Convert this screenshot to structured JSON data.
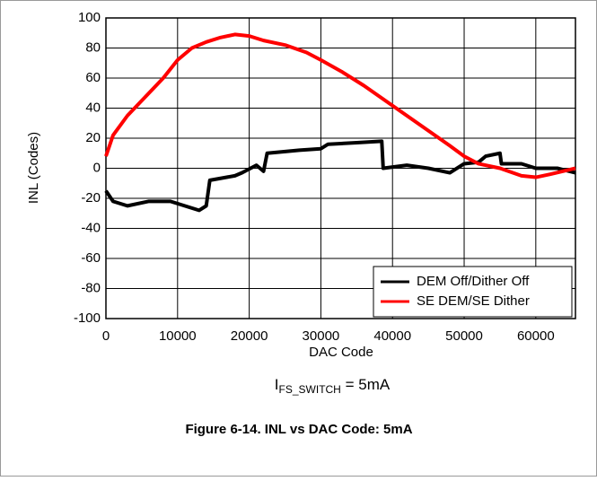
{
  "chart_data": {
    "type": "line",
    "x_label": "DAC Code",
    "y_label": "INL (Codes)",
    "xlim": [
      0,
      65535
    ],
    "xticks": [
      0,
      10000,
      20000,
      30000,
      40000,
      50000,
      60000
    ],
    "ylim": [
      -100,
      100
    ],
    "yticks": [
      -100,
      -80,
      -60,
      -40,
      -20,
      0,
      20,
      40,
      60,
      80,
      100
    ],
    "grid": true,
    "legend": "lower right",
    "condition": {
      "base": "I",
      "sub": "FS_SWITCH",
      "rest": " = 5mA"
    },
    "caption": "Figure 6-14. INL vs DAC Code: 5mA",
    "series": [
      {
        "name": "DEM Off/Dither Off",
        "color": "#000000",
        "x": [
          0,
          1000,
          3000,
          6000,
          9000,
          11000,
          13000,
          14000,
          14500,
          18000,
          19000,
          21000,
          22000,
          22500,
          27000,
          30000,
          31000,
          35000,
          38500,
          38700,
          42000,
          45000,
          48000,
          50000,
          52000,
          53000,
          55000,
          55200,
          58000,
          60000,
          63000,
          65535
        ],
        "values": [
          -15,
          -22,
          -25,
          -22,
          -22,
          -25,
          -28,
          -25,
          -8,
          -5,
          -3,
          2,
          -2,
          10,
          12,
          13,
          16,
          17,
          18,
          0,
          2,
          0,
          -3,
          3,
          4,
          8,
          10,
          3,
          3,
          0,
          0,
          -3
        ]
      },
      {
        "name": "SE DEM/SE Dither",
        "color": "#ff0000",
        "x": [
          0,
          1000,
          3000,
          5000,
          8000,
          10000,
          12000,
          14000,
          16000,
          18000,
          20000,
          22000,
          25000,
          28000,
          30000,
          33000,
          36000,
          39000,
          42000,
          45000,
          48000,
          50000,
          52000,
          55000,
          58000,
          60000,
          62000,
          65535
        ],
        "values": [
          8,
          22,
          35,
          45,
          60,
          72,
          80,
          84,
          87,
          89,
          88,
          85,
          82,
          77,
          72,
          64,
          55,
          45,
          35,
          25,
          15,
          8,
          3,
          0,
          -5,
          -6,
          -4,
          0
        ]
      }
    ]
  }
}
